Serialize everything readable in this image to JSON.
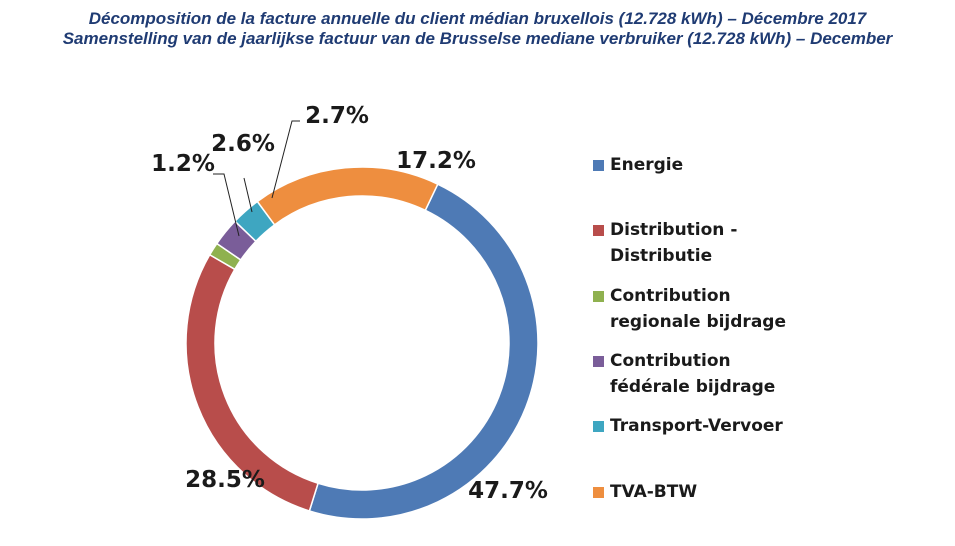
{
  "title": {
    "line1": "Décomposition de la facture annuelle du client médian bruxellois (12.728 kWh) – Décembre 2017",
    "line2": "Samenstelling van de jaarlijkse factuur van de Brusselse mediane verbruiker  (12.728 kWh) – December"
  },
  "chart_data": {
    "type": "pie",
    "variant": "donut",
    "title": "Décomposition de la facture annuelle du client médian bruxellois (12.728 kWh) – Décembre 2017",
    "legend_position": "right",
    "slices": [
      {
        "legend_lines": [
          "Energie"
        ],
        "value": 47.7,
        "label": "47.7%",
        "color": "#4e7ab5"
      },
      {
        "legend_lines": [
          "Distribution -",
          "Distributie"
        ],
        "value": 28.5,
        "label": "28.5%",
        "color": "#b84d4b"
      },
      {
        "legend_lines": [
          "Contribution",
          "regionale bijdrage"
        ],
        "value": 1.2,
        "label": "1.2%",
        "color": "#8fb14f"
      },
      {
        "legend_lines": [
          "Contribution",
          "fédérale bijdrage"
        ],
        "value": 2.6,
        "label": "2.6%",
        "color": "#7a5d99"
      },
      {
        "legend_lines": [
          "Transport-Vervoer"
        ],
        "value": 2.7,
        "label": "2.7%",
        "color": "#3ea6c1"
      },
      {
        "legend_lines": [
          "TVA-BTW"
        ],
        "value": 17.2,
        "label": "17.2%",
        "color": "#ee8e3f"
      }
    ]
  }
}
